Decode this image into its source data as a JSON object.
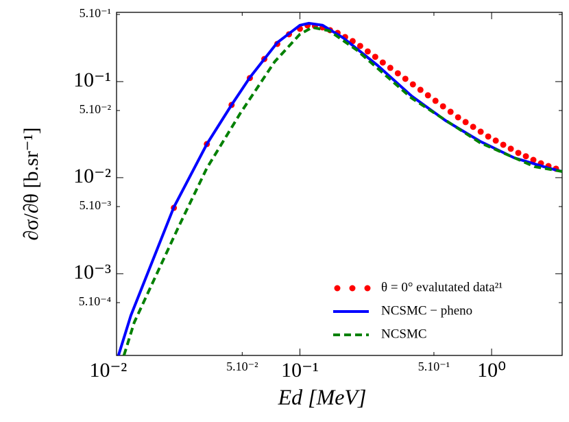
{
  "chart_data": {
    "type": "line",
    "xlabel": "Ed [MeV]",
    "ylabel": "∂σ/∂θ [b.sr⁻¹]",
    "xscale": "log",
    "yscale": "log",
    "xlim": [
      0.01105,
      2.333
    ],
    "ylim": [
      0.000141,
      0.526
    ],
    "xticks": [
      {
        "value": 0.01,
        "label": "10⁻²"
      },
      {
        "value": 0.05,
        "label": "5.10⁻²"
      },
      {
        "value": 0.1,
        "label": "10⁻¹"
      },
      {
        "value": 0.5,
        "label": "5.10⁻¹"
      },
      {
        "value": 1,
        "label": "10⁰"
      }
    ],
    "yticks": [
      {
        "value": 0.0005,
        "label": "5.10⁻⁴"
      },
      {
        "value": 0.001,
        "label": "10⁻³"
      },
      {
        "value": 0.005,
        "label": "5.10⁻³"
      },
      {
        "value": 0.01,
        "label": "10⁻²"
      },
      {
        "value": 0.05,
        "label": "5.10⁻²"
      },
      {
        "value": 0.1,
        "label": "10⁻¹"
      },
      {
        "value": 0.5,
        "label": "5.10⁻¹"
      }
    ],
    "legend": "lower right",
    "series": [
      {
        "name": "θ = 0° evalutated data²¹",
        "color": "#ff0000",
        "style": "markers",
        "x": [
          0.022,
          0.0327,
          0.044,
          0.0548,
          0.0652,
          0.0762,
          0.0877,
          0.1,
          0.1095,
          0.1198,
          0.1312,
          0.1436,
          0.1572,
          0.1721,
          0.1884,
          0.2062,
          0.2258,
          0.2471,
          0.2705,
          0.2961,
          0.3242,
          0.3548,
          0.3885,
          0.4253,
          0.4655,
          0.5095,
          0.5578,
          0.6106,
          0.6683,
          0.7316,
          0.8009,
          0.8768,
          0.9597,
          1.051,
          1.15,
          1.259,
          1.378,
          1.509,
          1.651,
          1.808,
          1.979,
          2.167
        ],
        "values": [
          0.00485,
          0.0224,
          0.0572,
          0.109,
          0.172,
          0.247,
          0.311,
          0.355,
          0.385,
          0.379,
          0.367,
          0.343,
          0.321,
          0.291,
          0.264,
          0.235,
          0.206,
          0.181,
          0.158,
          0.139,
          0.122,
          0.107,
          0.0936,
          0.0821,
          0.072,
          0.0631,
          0.0553,
          0.0485,
          0.0425,
          0.0379,
          0.0338,
          0.0301,
          0.0268,
          0.0243,
          0.022,
          0.02,
          0.0181,
          0.0167,
          0.0153,
          0.0141,
          0.0132,
          0.0124
        ]
      },
      {
        "name": "NCSMC − pheno",
        "color": "#0000ff",
        "style": "solid",
        "x": [
          0.01131,
          0.01312,
          0.022,
          0.0327,
          0.044,
          0.0548,
          0.0762,
          0.1,
          0.1113,
          0.1312,
          0.1679,
          0.2532,
          0.3821,
          0.5765,
          0.8697,
          1.312,
          1.979,
          2.333
        ],
        "values": [
          0.000141,
          0.000367,
          0.00493,
          0.0224,
          0.0572,
          0.1104,
          0.255,
          0.386,
          0.405,
          0.386,
          0.286,
          0.1484,
          0.0708,
          0.0392,
          0.0239,
          0.0161,
          0.0126,
          0.0116
        ]
      },
      {
        "name": "NCSMC",
        "color": "#008000",
        "style": "dashed",
        "x": [
          0.01208,
          0.01367,
          0.02333,
          0.0327,
          0.0489,
          0.0738,
          0.1,
          0.116,
          0.1424,
          0.1979,
          0.3821,
          0.8697,
          1.679,
          2.333
        ],
        "values": [
          0.000141,
          0.000311,
          0.00311,
          0.0126,
          0.0469,
          0.161,
          0.311,
          0.367,
          0.338,
          0.213,
          0.0674,
          0.0231,
          0.013,
          0.0116
        ]
      }
    ]
  }
}
